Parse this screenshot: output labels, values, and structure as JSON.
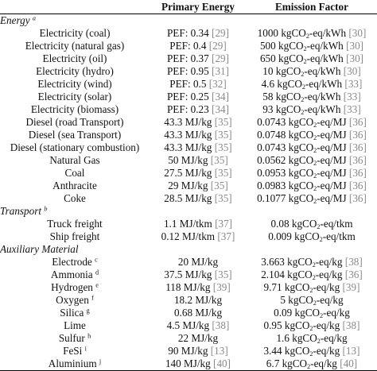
{
  "header": {
    "col1": "",
    "col2": "Primary Energy",
    "col3": "Emission Factor"
  },
  "sections": [
    {
      "title": "Energy",
      "mark": "a",
      "rows": [
        {
          "name": "Electricity (coal)",
          "energy": "PEF: 0.34",
          "energy_ref": "29",
          "factor": "1000 kgCO₂-eq/kWh",
          "factor_ref": "30"
        },
        {
          "name": "Electricity (natural gas)",
          "energy": "PEF: 0.4",
          "energy_ref": "29",
          "factor": "500 kgCO₂-eq/kWh",
          "factor_ref": "30"
        },
        {
          "name": "Electricity (oil)",
          "energy": "PEF: 0.37",
          "energy_ref": "29",
          "factor": "650 kgCO₂-eq/kWh",
          "factor_ref": "30"
        },
        {
          "name": "Electricity (hydro)",
          "energy": "PEF: 0.95",
          "energy_ref": "31",
          "factor": "10 kgCO₂-eq/kWh",
          "factor_ref": "30"
        },
        {
          "name": "Electricity (wind)",
          "energy": "PEF: 0.5",
          "energy_ref": "32",
          "factor": "4.6 kgCO₂-eq/kWh",
          "factor_ref": "33"
        },
        {
          "name": "Electricity (solar)",
          "energy": "PEF: 0.25",
          "energy_ref": "34",
          "factor": "58 kgCO₂-eq/kWh",
          "factor_ref": "33"
        },
        {
          "name": "Electricity (biomass)",
          "energy": "PEF: 0.23",
          "energy_ref": "34",
          "factor": "93 kgCO₂-eq/kWh",
          "factor_ref": "33"
        },
        {
          "name": "Diesel (road Transport)",
          "energy": "43.3 MJ/kg",
          "energy_ref": "35",
          "factor": "0.0743 kgCO₂-eq/MJ",
          "factor_ref": "36"
        },
        {
          "name": "Diesel (sea Transport)",
          "energy": "43.3 MJ/kg",
          "energy_ref": "35",
          "factor": "0.0748 kgCO₂-eq/MJ",
          "factor_ref": "36"
        },
        {
          "name": "Diesel (stationary combustion)",
          "energy": "43.3 MJ/kg",
          "energy_ref": "35",
          "factor": "0.0743 kgCO₂-eq/MJ",
          "factor_ref": "36"
        },
        {
          "name": "Natural Gas",
          "energy": "50 MJ/kg",
          "energy_ref": "35",
          "factor": "0.0562 kgCO₂-eq/MJ",
          "factor_ref": "36"
        },
        {
          "name": "Coal",
          "energy": "27.5 MJ/kg",
          "energy_ref": "35",
          "factor": "0.0953 kgCO₂-eq/MJ",
          "factor_ref": "36"
        },
        {
          "name": "Anthracite",
          "energy": "29 MJ/kg",
          "energy_ref": "35",
          "factor": "0.0983 kgCO₂-eq/MJ",
          "factor_ref": "36"
        },
        {
          "name": "Coke",
          "energy": "28.5 MJ/kg",
          "energy_ref": "35",
          "factor": "0.1077 kgCO₂-eq/MJ",
          "factor_ref": "36"
        }
      ]
    },
    {
      "title": "Transport",
      "mark": "b",
      "rows": [
        {
          "name": "Truck freight",
          "energy": "1.1 MJ/tkm",
          "energy_ref": "37",
          "factor": "0.08 kgCO₂-eq/tkm",
          "factor_ref": ""
        },
        {
          "name": "Ship freight",
          "energy": "0.12 MJ/tkm",
          "energy_ref": "37",
          "factor": "0.009 kgCO₂-eq/tkm",
          "factor_ref": ""
        }
      ]
    },
    {
      "title": "Auxiliary Material",
      "mark": "",
      "rows": [
        {
          "name": "Electrode",
          "mark": "c",
          "energy": "20 MJ/kg",
          "energy_ref": "",
          "factor": "3.663 kgCO₂-eq/kg",
          "factor_ref": "38"
        },
        {
          "name": "Ammonia",
          "mark": "d",
          "energy": "37.5 MJ/kg",
          "energy_ref": "35",
          "factor": "2.104 kgCO₂-eq/kg",
          "factor_ref": "36"
        },
        {
          "name": "Hydrogen",
          "mark": "e",
          "energy": "118 MJ/kg",
          "energy_ref": "39",
          "factor": "9.71 kgCO₂-eq/kg",
          "factor_ref": "39"
        },
        {
          "name": "Oxygen",
          "mark": "f",
          "energy": "18.2 MJ/kg",
          "energy_ref": "",
          "factor": "5 kgCO₂-eq/kg",
          "factor_ref": ""
        },
        {
          "name": "Silica",
          "mark": "g",
          "energy": "0.68 MJ/kg",
          "energy_ref": "",
          "factor": "0.09 kgCO₂-eq/kg",
          "factor_ref": ""
        },
        {
          "name": "Lime",
          "mark": "",
          "energy": "4.5 MJ/kg",
          "energy_ref": "38",
          "factor": "0.95 kgCO₂-eq/kg",
          "factor_ref": "38"
        },
        {
          "name": "Sulfur",
          "mark": "h",
          "energy": "22 MJ/kg",
          "energy_ref": "",
          "factor": "1.6 kgCO₂-eq/kg",
          "factor_ref": ""
        },
        {
          "name": "FeSi",
          "mark": "i",
          "energy": "90 MJ/kg",
          "energy_ref": "13",
          "factor": "3.44 kgCO₂-eq/kg",
          "factor_ref": "13"
        },
        {
          "name": "Aluminium",
          "mark": "j",
          "energy": "140 MJ/kg",
          "energy_ref": "40",
          "factor": "6.7 kgCO₂-eq/kg",
          "factor_ref": "40"
        }
      ]
    }
  ]
}
